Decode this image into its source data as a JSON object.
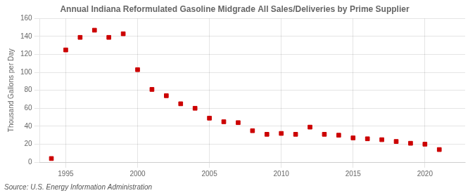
{
  "chart_data": {
    "type": "scatter",
    "title": "Annual Indiana Reformulated Gasoline Midgrade All Sales/Deliveries by Prime Supplier",
    "y_label": "Thousand Gallons per Day",
    "annotation": "Source: U.S. Energy Information Administration",
    "x": [
      1994,
      1995,
      1996,
      1997,
      1998,
      1999,
      2000,
      2001,
      2002,
      2003,
      2004,
      2005,
      2006,
      2007,
      2008,
      2009,
      2010,
      2011,
      2012,
      2013,
      2014,
      2015,
      2016,
      2017,
      2018,
      2019,
      2020,
      2021
    ],
    "values": [
      4,
      125,
      139,
      147,
      139,
      143,
      103,
      81,
      74,
      65,
      60,
      49,
      45,
      44,
      35,
      31,
      32,
      31,
      39,
      31,
      30,
      27,
      26,
      25,
      23,
      21,
      20,
      14
    ],
    "color": "#cc0000",
    "marker": "square",
    "xlim": [
      1993.2,
      2022.8
    ],
    "xticks": [
      1995,
      2000,
      2005,
      2010,
      2015,
      2020
    ],
    "ylim": [
      0,
      160
    ],
    "yticks": [
      0,
      20,
      40,
      60,
      80,
      100,
      120,
      140,
      160
    ],
    "grid": true
  }
}
